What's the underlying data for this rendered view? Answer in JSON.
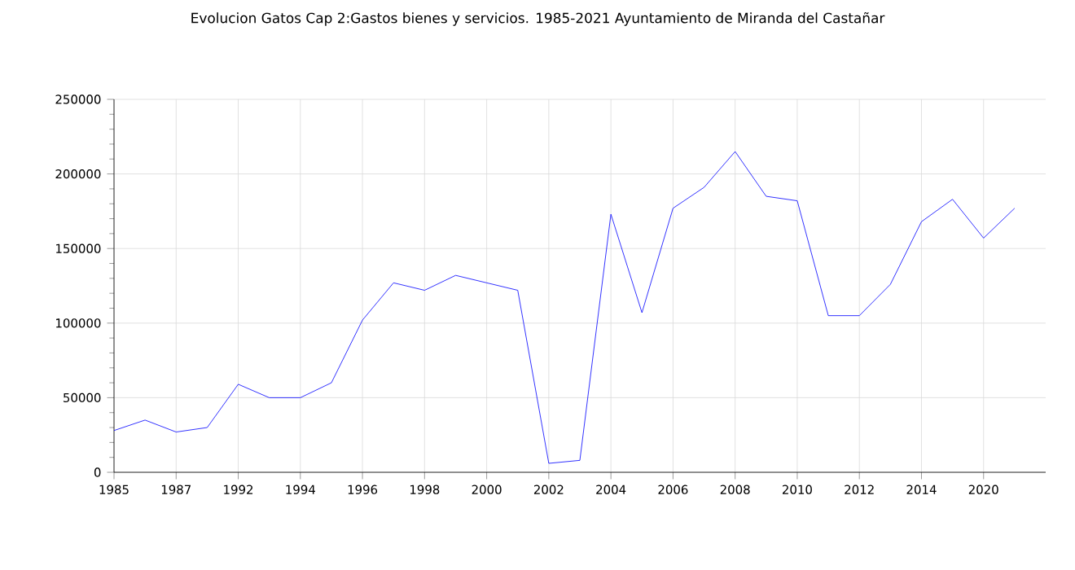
{
  "chart_data": {
    "type": "line",
    "title": "Evolucion Gatos Cap 2:Gastos bienes y servicios. 1985-2021 Ayuntamiento de Miranda del Castañar",
    "categories": [
      "1985",
      null,
      "1987",
      null,
      "1992",
      null,
      "1994",
      null,
      "1996",
      null,
      "1998",
      null,
      "2000",
      null,
      "2002",
      null,
      "2004",
      null,
      "2006",
      null,
      "2008",
      null,
      "2010",
      null,
      "2012",
      null,
      "2014",
      null,
      "2020",
      null
    ],
    "series": [
      {
        "color": "#0000ff",
        "values": [
          28000,
          35000,
          27000,
          30000,
          59000,
          50000,
          50000,
          60000,
          102000,
          127000,
          122000,
          132000,
          127000,
          122000,
          6000,
          8000,
          173000,
          107000,
          177000,
          191000,
          215000,
          185000,
          182000,
          105000,
          105000,
          126000,
          168000,
          183000,
          157000,
          177000
        ]
      }
    ],
    "ylim": [
      0,
      250000
    ],
    "yticks": [
      0,
      50000,
      100000,
      150000,
      200000,
      250000
    ],
    "grid": true,
    "marker": "none",
    "line_style": "solid"
  }
}
